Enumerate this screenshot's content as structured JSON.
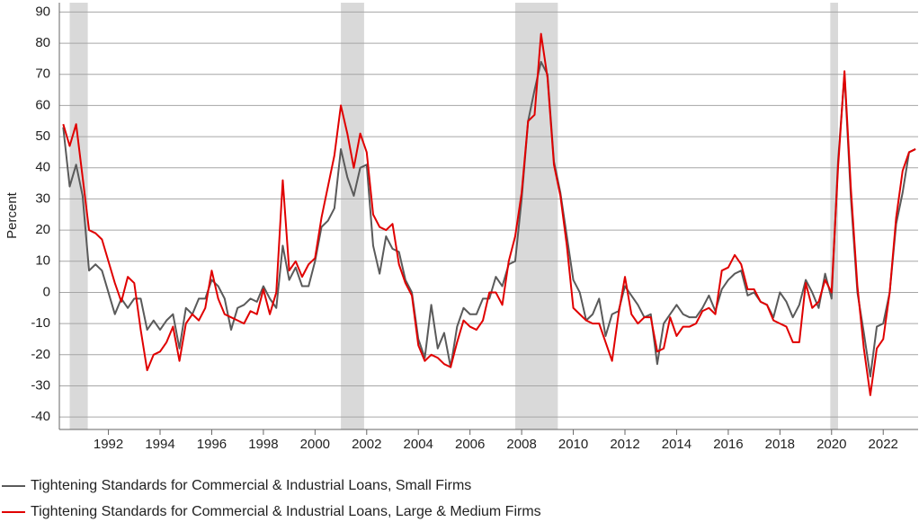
{
  "chart_data": {
    "type": "line",
    "y_axis_label": "Percent",
    "x": [
      1990.25,
      1990.5,
      1990.75,
      1991,
      1991.25,
      1991.5,
      1991.75,
      1992,
      1992.25,
      1992.5,
      1992.75,
      1993,
      1993.25,
      1993.5,
      1993.75,
      1994,
      1994.25,
      1994.5,
      1994.75,
      1995,
      1995.25,
      1995.5,
      1995.75,
      1996,
      1996.25,
      1996.5,
      1996.75,
      1997,
      1997.25,
      1997.5,
      1997.75,
      1998,
      1998.25,
      1998.5,
      1998.75,
      1999,
      1999.25,
      1999.5,
      1999.75,
      2000,
      2000.25,
      2000.5,
      2000.75,
      2001,
      2001.25,
      2001.5,
      2001.75,
      2002,
      2002.25,
      2002.5,
      2002.75,
      2003,
      2003.25,
      2003.5,
      2003.75,
      2004,
      2004.25,
      2004.5,
      2004.75,
      2005,
      2005.25,
      2005.5,
      2005.75,
      2006,
      2006.25,
      2006.5,
      2006.75,
      2007,
      2007.25,
      2007.5,
      2007.75,
      2008,
      2008.25,
      2008.5,
      2008.75,
      2009,
      2009.25,
      2009.5,
      2009.75,
      2010,
      2010.25,
      2010.5,
      2010.75,
      2011,
      2011.25,
      2011.5,
      2011.75,
      2012,
      2012.25,
      2012.5,
      2012.75,
      2013,
      2013.25,
      2013.5,
      2013.75,
      2014,
      2014.25,
      2014.5,
      2014.75,
      2015,
      2015.25,
      2015.5,
      2015.75,
      2016,
      2016.25,
      2016.5,
      2016.75,
      2017,
      2017.25,
      2017.5,
      2017.75,
      2018,
      2018.25,
      2018.5,
      2018.75,
      2019,
      2019.25,
      2019.5,
      2019.75,
      2020,
      2020.25,
      2020.5,
      2020.75,
      2021,
      2021.25,
      2021.5,
      2021.75,
      2022,
      2022.25,
      2022.5,
      2022.75,
      2023,
      2023.25
    ],
    "series": [
      {
        "name": "Tightening Standards for Commercial & Industrial Loans, Small Firms",
        "color": "#5a5a5a",
        "values": [
          53,
          34,
          41,
          31,
          7,
          9,
          7,
          0,
          -7,
          -2,
          -5,
          -2,
          -2,
          -12,
          -9,
          -12,
          -9,
          -7,
          -18,
          -5,
          -7,
          -2,
          -2,
          4,
          2,
          -2,
          -12,
          -5,
          -4,
          -2,
          -3,
          2,
          -2,
          -5,
          15,
          4,
          8,
          2,
          2,
          10,
          21,
          23,
          27,
          46,
          37,
          31,
          40,
          41,
          15,
          6,
          18,
          14,
          13,
          4,
          0,
          -15,
          -21,
          -4,
          -18,
          -13,
          -24,
          -11,
          -5,
          -7,
          -7,
          -2,
          -2,
          5,
          2,
          9,
          10,
          30,
          55,
          65,
          74,
          70,
          42,
          32,
          18,
          4,
          0,
          -9,
          -7,
          -2,
          -14,
          -7,
          -6,
          2,
          -1,
          -4,
          -8,
          -7,
          -23,
          -10,
          -7,
          -4,
          -7,
          -8,
          -8,
          -5,
          -1,
          -6,
          1,
          4,
          6,
          7,
          -1,
          0,
          -3,
          -4,
          -8,
          0,
          -3,
          -8,
          -4,
          4,
          0,
          -5,
          6,
          -2,
          42,
          70,
          30,
          0,
          -13,
          -27,
          -11,
          -10,
          0,
          22,
          32,
          45,
          46
        ]
      },
      {
        "name": "Tightening Standards for Commercial & Industrial Loans, Large & Medium Firms",
        "color": "#e00000",
        "values": [
          54,
          47,
          54,
          37,
          20,
          19,
          17,
          10,
          3,
          -3,
          5,
          3,
          -12,
          -25,
          -20,
          -19,
          -16,
          -11,
          -22,
          -10,
          -7,
          -9,
          -5,
          7,
          -2,
          -7,
          -8,
          -9,
          -10,
          -6,
          -7,
          1,
          -7,
          0,
          36,
          7,
          10,
          5,
          9,
          11,
          24,
          34,
          44,
          60,
          51,
          40,
          51,
          45,
          25,
          21,
          20,
          22,
          9,
          3,
          -1,
          -17,
          -22,
          -20,
          -21,
          -23,
          -24,
          -16,
          -9,
          -11,
          -12,
          -9,
          0,
          0,
          -4,
          10,
          18,
          32,
          55,
          57,
          83,
          69,
          41,
          31,
          15,
          -5,
          -7,
          -9,
          -10,
          -10,
          -16,
          -22,
          -7,
          5,
          -7,
          -10,
          -8,
          -8,
          -19,
          -18,
          -8,
          -14,
          -11,
          -11,
          -10,
          -6,
          -5,
          -7,
          7,
          8,
          12,
          9,
          1,
          1,
          -3,
          -4,
          -9,
          -10,
          -11,
          -16,
          -16,
          3,
          -5,
          -3,
          4,
          0,
          40,
          71,
          33,
          2,
          -18,
          -33,
          -18,
          -15,
          0,
          24,
          39,
          45,
          46
        ]
      }
    ],
    "recessions": [
      [
        1990.5,
        1991.2
      ],
      [
        2001.0,
        2001.9
      ],
      [
        2007.75,
        2009.4
      ],
      [
        2019.95,
        2020.25
      ]
    ],
    "recession_color": "#d9d9d9",
    "xlim": [
      1990.1,
      2023.35
    ],
    "xticks": [
      1992,
      1994,
      1996,
      1998,
      2000,
      2002,
      2004,
      2006,
      2008,
      2010,
      2012,
      2014,
      2016,
      2018,
      2020,
      2022
    ],
    "ylim": [
      -44,
      93
    ],
    "yticks": [
      -40,
      -30,
      -20,
      -10,
      0,
      10,
      20,
      30,
      40,
      50,
      60,
      70,
      80,
      90
    ],
    "grid": true
  }
}
